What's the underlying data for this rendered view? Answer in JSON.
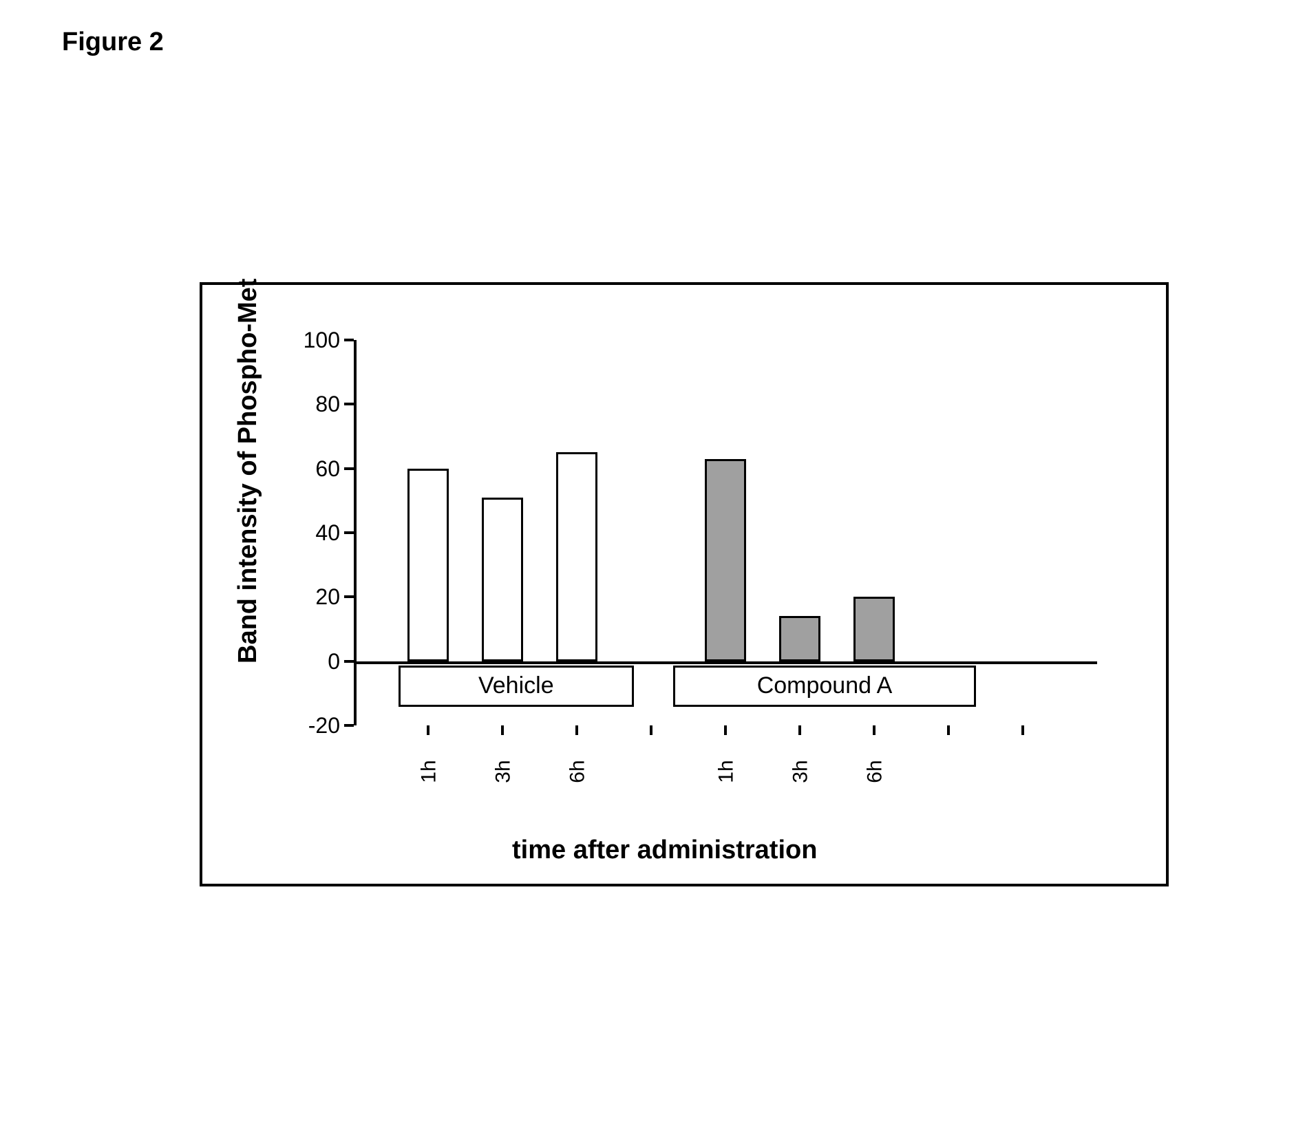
{
  "figure_title": "Figure 2",
  "chart": {
    "type": "bar",
    "ylabel": "Band intensity of Phospho-Met",
    "xlabel": "time after administration",
    "ylim": [
      -20,
      100
    ],
    "ytick_step": 20,
    "yticks": [
      100,
      80,
      60,
      40,
      20,
      0,
      -20
    ],
    "axis_color": "#000000",
    "background_color": "#ffffff",
    "label_fontsize": 38,
    "tick_fontsize": 32,
    "xtick_fontsize": 30,
    "bar_border_color": "#000000",
    "bar_border_width": 3,
    "bar_width_units": 0.55,
    "groups": [
      {
        "label": "Vehicle",
        "box_border_color": "#000000",
        "categories": [
          "1h",
          "3h",
          "6h"
        ],
        "values": [
          60,
          51,
          65
        ],
        "bar_fill": "#ffffff",
        "positions": [
          1,
          2,
          3
        ]
      },
      {
        "label": "Compound A",
        "box_border_color": "#000000",
        "categories": [
          "1h",
          "3h",
          "6h"
        ],
        "values": [
          63,
          14,
          20
        ],
        "bar_fill": "#a0a0a0",
        "positions": [
          5,
          6,
          7
        ]
      }
    ],
    "x_domain": [
      0,
      10
    ],
    "xtick_positions": [
      1,
      2,
      3,
      4,
      5,
      6,
      7,
      8,
      9
    ],
    "xtick_labels": [
      "1h",
      "3h",
      "6h",
      "",
      "1h",
      "3h",
      "6h",
      "",
      ""
    ]
  }
}
